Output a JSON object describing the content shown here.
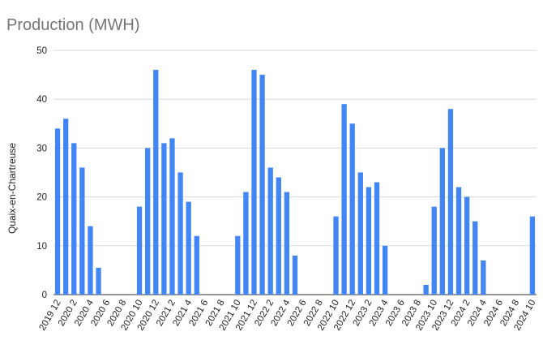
{
  "chart_data": {
    "type": "bar",
    "title": "Production (MWH)",
    "xlabel": "",
    "ylabel": "Quaix-en-Chartreuse",
    "ylim": [
      0,
      50
    ],
    "yticks": [
      0,
      10,
      20,
      30,
      40,
      50
    ],
    "grid": true,
    "legend": "none",
    "bar_color": "#4285f4",
    "categories": [
      "2019 12",
      "2020 1",
      "2020 2",
      "2020 3",
      "2020 4",
      "2020 5",
      "2020 6",
      "2020 7",
      "2020 8",
      "2020 9",
      "2020 10",
      "2020 11",
      "2020 12",
      "2021 1",
      "2021 2",
      "2021 3",
      "2021 4",
      "2021 5",
      "2021 6",
      "2021 7",
      "2021 8",
      "2021 9",
      "2021 10",
      "2021 11",
      "2021 12",
      "2022 1",
      "2022 2",
      "2022 3",
      "2022 4",
      "2022 5",
      "2022 6",
      "2022 7",
      "2022 8",
      "2022 9",
      "2022 10",
      "2022 11",
      "2022 12",
      "2023 1",
      "2023 2",
      "2023 3",
      "2023 4",
      "2023 5",
      "2023 6",
      "2023 7",
      "2023 8",
      "2023 9",
      "2023 10",
      "2023 11",
      "2023 12",
      "2024 1",
      "2024 2",
      "2024 3",
      "2024 4",
      "2024 5",
      "2024 6",
      "2024 7",
      "2024 8",
      "2024 9",
      "2024 10"
    ],
    "tick_labels": [
      "2019 12",
      "2020 2",
      "2020 4",
      "2020 6",
      "2020 8",
      "2020 10",
      "2020 12",
      "2021 2",
      "2021 4",
      "2021 6",
      "2021 8",
      "2021 10",
      "2021 12",
      "2022 2",
      "2022 4",
      "2022 6",
      "2022 8",
      "2022 10",
      "2022 12",
      "2023 2",
      "2023 4",
      "2023 6",
      "2023 8",
      "2023 10",
      "2023 12",
      "2024 2",
      "2024 4",
      "2024 6",
      "2024 8",
      "2024 10"
    ],
    "values": [
      34,
      36,
      31,
      26,
      14,
      5.5,
      0,
      0,
      0,
      0,
      18,
      30,
      46,
      31,
      32,
      25,
      19,
      12,
      0,
      0,
      0,
      0,
      12,
      21,
      46,
      45,
      26,
      24,
      21,
      8,
      0,
      0,
      0,
      0,
      16,
      39,
      35,
      25,
      22,
      23,
      10,
      0,
      0,
      0,
      0,
      2,
      18,
      30,
      38,
      22,
      20,
      15,
      7,
      0,
      0,
      0,
      0,
      0,
      16
    ]
  }
}
